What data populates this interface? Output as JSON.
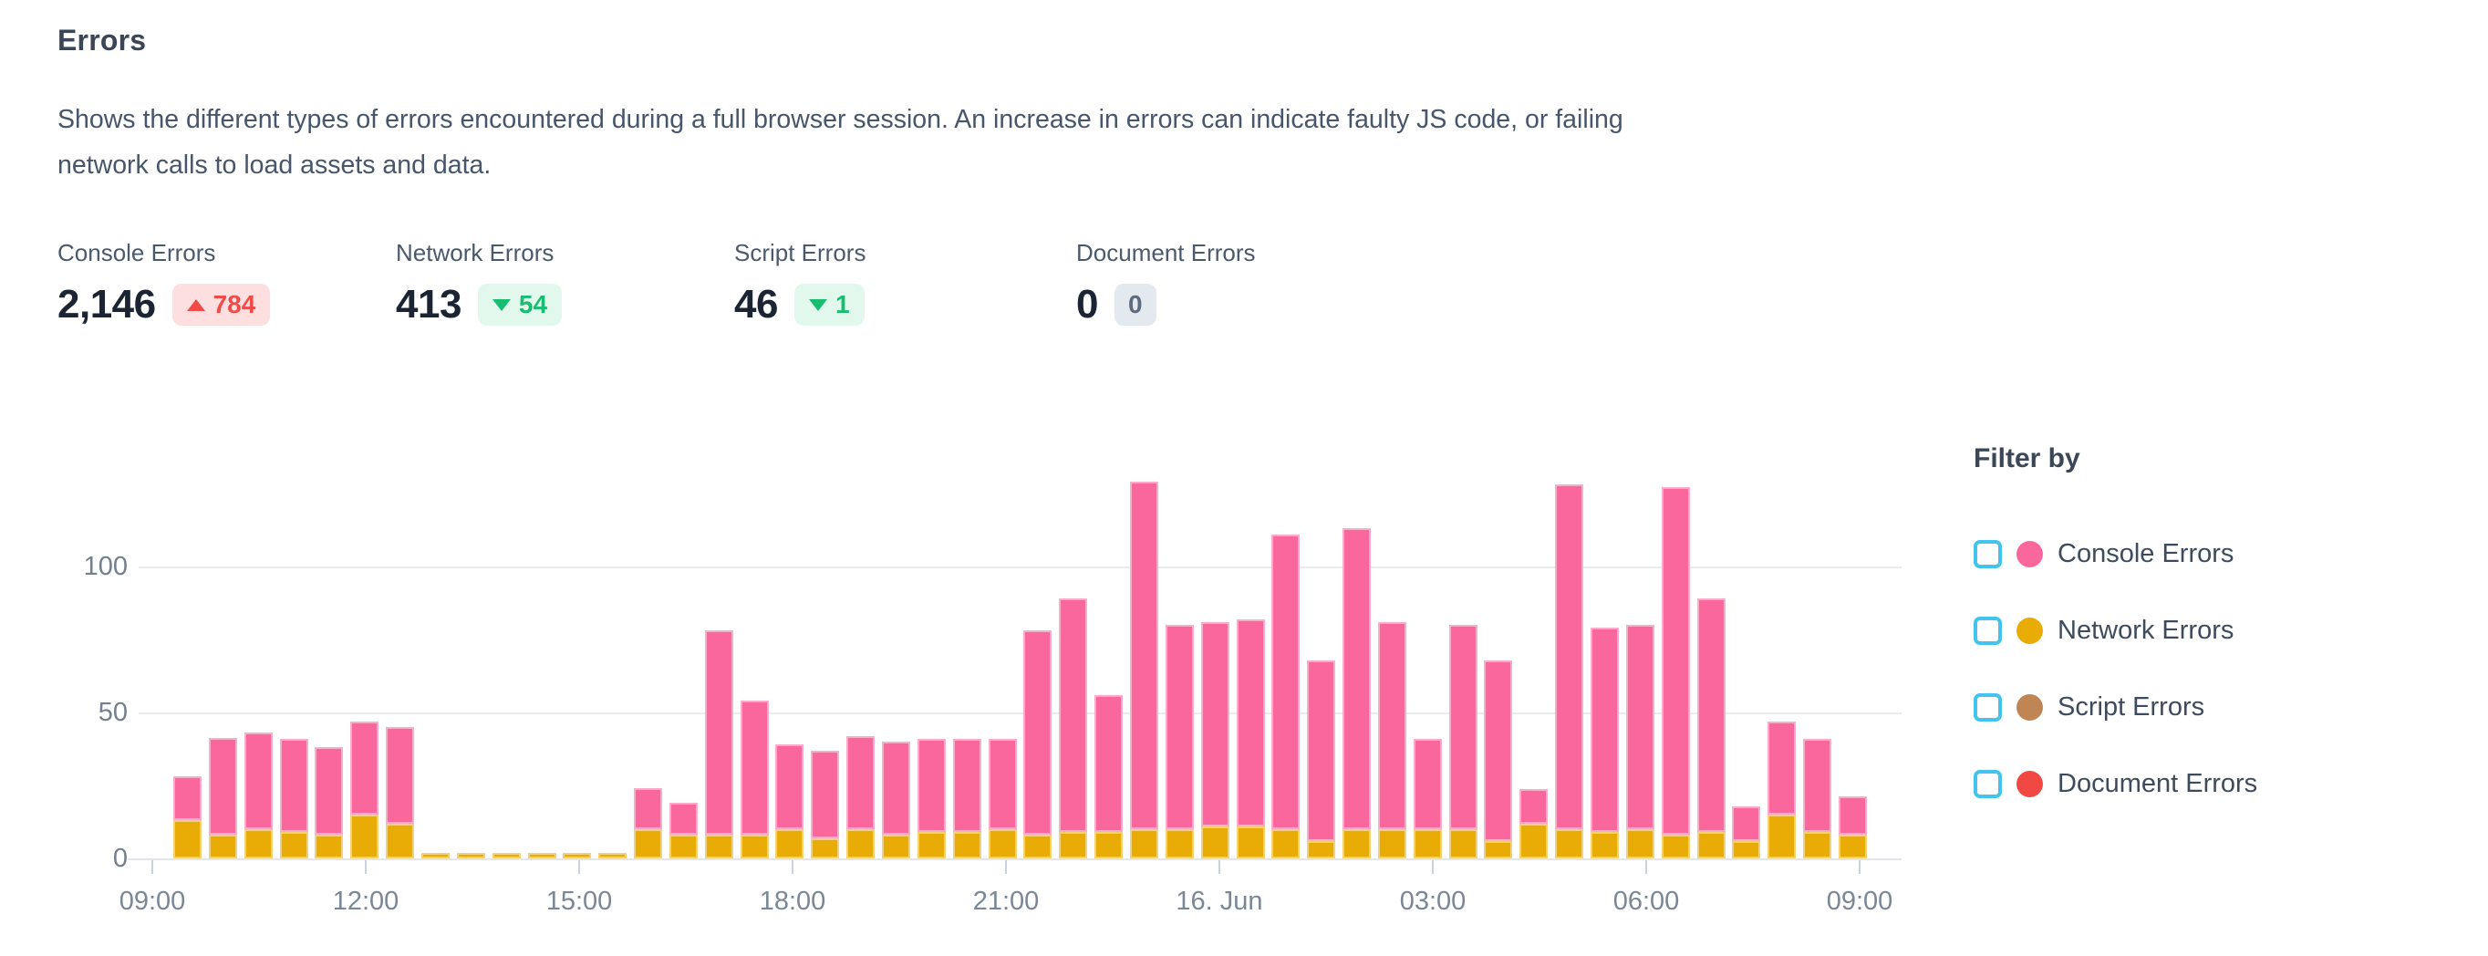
{
  "panel": {
    "title": "Errors",
    "description_line1": "Shows the different types of errors encountered during a full browser session. An increase in errors can indicate faulty JS code, or failing",
    "description_line2": "network calls to load assets and data."
  },
  "stats": [
    {
      "label": "Console Errors",
      "value": "2,146",
      "delta": "784",
      "direction": "up",
      "tone": "bad"
    },
    {
      "label": "Network Errors",
      "value": "413",
      "delta": "54",
      "direction": "down",
      "tone": "good"
    },
    {
      "label": "Script Errors",
      "value": "46",
      "delta": "1",
      "direction": "down",
      "tone": "good"
    },
    {
      "label": "Document Errors",
      "value": "0",
      "delta": "0",
      "direction": "none",
      "tone": "neutral"
    }
  ],
  "legend": {
    "title": "Filter by",
    "items": [
      {
        "label": "Console Errors",
        "color": "#fa679c",
        "checked": false
      },
      {
        "label": "Network Errors",
        "color": "#e9ac07",
        "checked": false
      },
      {
        "label": "Script Errors",
        "color": "#c08555",
        "checked": false
      },
      {
        "label": "Document Errors",
        "color": "#f24844",
        "checked": false
      }
    ]
  },
  "colors": {
    "console": "#fa679c",
    "network": "#e9ac07",
    "script": "#c08555",
    "document": "#f24844",
    "checkbox_border": "#42c3f0",
    "badge_red_text": "#f14b48",
    "badge_red_bg": "#fddfdf",
    "badge_green_text": "#19bd71",
    "badge_green_bg": "#e3f8ed",
    "badge_gray_text": "#5d6c7d",
    "badge_gray_bg": "#e4e9f0"
  },
  "chart_data": {
    "type": "bar",
    "stacked": true,
    "bucket_minutes": 30,
    "x_tick_labels": [
      "09:00",
      "12:00",
      "15:00",
      "18:00",
      "21:00",
      "16. Jun",
      "03:00",
      "06:00",
      "09:00"
    ],
    "y_ticks": [
      0,
      50,
      100
    ],
    "ylim": [
      0,
      140
    ],
    "grid": "horizontal",
    "legend_position": "right",
    "series": [
      {
        "name": "Network Errors",
        "color": "#e9ac07",
        "values": [
          13,
          8,
          10,
          9,
          8,
          15,
          12,
          2,
          2,
          2,
          2,
          2,
          2,
          10,
          8,
          8,
          8,
          10,
          7,
          10,
          8,
          9,
          9,
          10,
          8,
          9,
          9,
          10,
          10,
          11,
          11,
          10,
          6,
          10,
          10,
          10,
          10,
          6,
          12,
          10,
          9,
          10,
          8,
          9,
          6,
          15,
          9,
          8
        ]
      },
      {
        "name": "Console Errors",
        "color": "#fa679c",
        "values": [
          15,
          33,
          33,
          32,
          30,
          32,
          33,
          0,
          0,
          0,
          0,
          0,
          0,
          14,
          11,
          70,
          46,
          29,
          30,
          32,
          32,
          32,
          32,
          31,
          70,
          80,
          47,
          119,
          70,
          70,
          71,
          101,
          62,
          103,
          71,
          31,
          70,
          62,
          12,
          118,
          70,
          70,
          119,
          80,
          12,
          32,
          32,
          13
        ]
      }
    ]
  }
}
